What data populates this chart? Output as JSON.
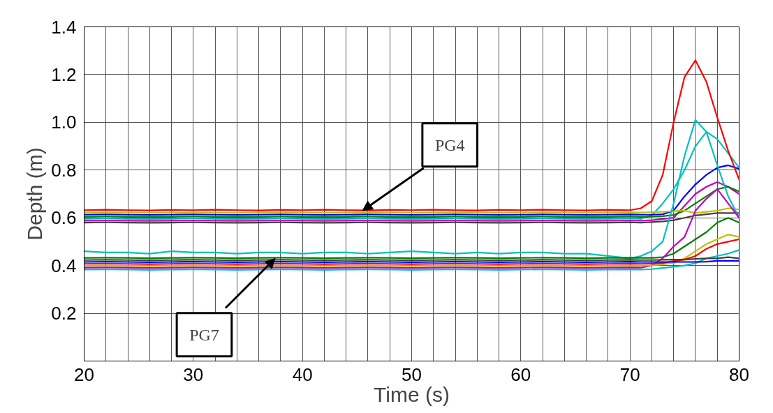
{
  "chart_data": {
    "type": "line",
    "xlabel": "Time (s)",
    "ylabel": "Depth (m)",
    "x": [
      20,
      22,
      24,
      26,
      28,
      30,
      32,
      34,
      36,
      38,
      40,
      42,
      44,
      46,
      48,
      50,
      52,
      54,
      56,
      58,
      60,
      62,
      64,
      66,
      68,
      70,
      71,
      72,
      73,
      74,
      75,
      76,
      77,
      78,
      79,
      80
    ],
    "xlim": [
      20,
      80
    ],
    "ylim": [
      0,
      1.4
    ],
    "xticks": [
      20,
      {
        "value": 22,
        "label": null
      },
      {
        "value": 24,
        "label": null
      },
      {
        "value": 26,
        "label": null
      },
      {
        "value": 28,
        "label": null
      },
      30,
      {
        "value": 32,
        "label": null
      },
      {
        "value": 34,
        "label": null
      },
      {
        "value": 36,
        "label": null
      },
      {
        "value": 38,
        "label": null
      },
      40,
      {
        "value": 42,
        "label": null
      },
      {
        "value": 44,
        "label": null
      },
      {
        "value": 46,
        "label": null
      },
      {
        "value": 48,
        "label": null
      },
      50,
      {
        "value": 52,
        "label": null
      },
      {
        "value": 54,
        "label": null
      },
      {
        "value": 56,
        "label": null
      },
      {
        "value": 58,
        "label": null
      },
      60,
      {
        "value": 62,
        "label": null
      },
      {
        "value": 64,
        "label": null
      },
      {
        "value": 66,
        "label": null
      },
      {
        "value": 68,
        "label": null
      },
      70,
      {
        "value": 72,
        "label": null
      },
      {
        "value": 74,
        "label": null
      },
      {
        "value": 76,
        "label": null
      },
      {
        "value": 78,
        "label": null
      },
      80
    ],
    "yticks": [
      0.2,
      0.4,
      0.6,
      0.8,
      {
        "value": 1.0,
        "label": "1.0"
      },
      1.2,
      1.4
    ],
    "grid": true,
    "marker": "none",
    "line_style": "solid",
    "annotations": [
      {
        "text": "PG4",
        "x": 45.5,
        "y": 0.63
      },
      {
        "text": "PG7",
        "x": 37.5,
        "y": 0.43
      }
    ],
    "series": [
      {
        "color": "#00c0c0",
        "values": [
          0.596,
          0.597,
          0.596,
          0.595,
          0.596,
          0.597,
          0.596,
          0.595,
          0.596,
          0.597,
          0.596,
          0.595,
          0.596,
          0.597,
          0.596,
          0.595,
          0.596,
          0.597,
          0.596,
          0.595,
          0.596,
          0.597,
          0.596,
          0.595,
          0.596,
          0.597,
          0.596,
          0.61,
          0.66,
          0.72,
          0.8,
          0.9,
          0.96,
          0.93,
          0.87,
          0.81
        ]
      },
      {
        "color": "#0000ff",
        "values": [
          0.613,
          0.614,
          0.613,
          0.612,
          0.613,
          0.614,
          0.613,
          0.612,
          0.613,
          0.614,
          0.613,
          0.612,
          0.613,
          0.614,
          0.613,
          0.612,
          0.613,
          0.614,
          0.613,
          0.612,
          0.613,
          0.614,
          0.613,
          0.612,
          0.613,
          0.614,
          0.613,
          0.613,
          0.615,
          0.63,
          0.69,
          0.74,
          0.78,
          0.81,
          0.82,
          0.805
        ]
      },
      {
        "color": "#c000c0",
        "values": [
          0.588,
          0.589,
          0.588,
          0.587,
          0.588,
          0.589,
          0.588,
          0.587,
          0.588,
          0.589,
          0.588,
          0.587,
          0.588,
          0.589,
          0.588,
          0.587,
          0.588,
          0.589,
          0.588,
          0.587,
          0.588,
          0.589,
          0.588,
          0.587,
          0.588,
          0.589,
          0.588,
          0.59,
          0.595,
          0.6,
          0.65,
          0.7,
          0.73,
          0.75,
          0.73,
          0.7
        ]
      },
      {
        "color": "#008000",
        "values": [
          0.604,
          0.605,
          0.604,
          0.603,
          0.604,
          0.605,
          0.604,
          0.603,
          0.604,
          0.605,
          0.604,
          0.603,
          0.604,
          0.605,
          0.604,
          0.603,
          0.604,
          0.605,
          0.604,
          0.603,
          0.604,
          0.605,
          0.604,
          0.603,
          0.604,
          0.605,
          0.604,
          0.605,
          0.607,
          0.612,
          0.63,
          0.66,
          0.69,
          0.72,
          0.73,
          0.71
        ]
      },
      {
        "color": "#c0c000",
        "values": [
          0.622,
          0.623,
          0.622,
          0.621,
          0.622,
          0.623,
          0.622,
          0.621,
          0.622,
          0.623,
          0.622,
          0.621,
          0.622,
          0.623,
          0.622,
          0.621,
          0.622,
          0.623,
          0.622,
          0.621,
          0.622,
          0.623,
          0.622,
          0.621,
          0.622,
          0.623,
          0.622,
          0.624,
          0.625,
          0.628,
          0.63,
          0.62,
          0.625,
          0.63,
          0.64,
          0.635
        ]
      },
      {
        "color": "#404040",
        "values": [
          0.58,
          0.581,
          0.58,
          0.579,
          0.58,
          0.581,
          0.58,
          0.579,
          0.58,
          0.581,
          0.58,
          0.579,
          0.58,
          0.581,
          0.58,
          0.579,
          0.58,
          0.581,
          0.58,
          0.579,
          0.58,
          0.581,
          0.58,
          0.579,
          0.58,
          0.581,
          0.58,
          0.582,
          0.585,
          0.59,
          0.6,
          0.61,
          0.615,
          0.62,
          0.62,
          0.62
        ]
      },
      {
        "color": "#ff0000",
        "values": [
          0.632,
          0.634,
          0.632,
          0.631,
          0.633,
          0.632,
          0.634,
          0.632,
          0.631,
          0.633,
          0.632,
          0.634,
          0.632,
          0.631,
          0.633,
          0.632,
          0.634,
          0.632,
          0.631,
          0.633,
          0.632,
          0.634,
          0.632,
          0.631,
          0.633,
          0.632,
          0.64,
          0.67,
          0.78,
          1.0,
          1.19,
          1.26,
          1.17,
          1.02,
          0.88,
          0.76
        ]
      },
      {
        "color": "#00c0c0",
        "values": [
          0.46,
          0.455,
          0.455,
          0.45,
          0.46,
          0.455,
          0.455,
          0.45,
          0.455,
          0.455,
          0.45,
          0.455,
          0.455,
          0.45,
          0.455,
          0.46,
          0.455,
          0.45,
          0.455,
          0.45,
          0.455,
          0.455,
          0.45,
          0.45,
          0.44,
          0.43,
          0.44,
          0.46,
          0.5,
          0.66,
          0.86,
          1.01,
          0.96,
          0.82,
          0.69,
          0.6
        ]
      },
      {
        "color": "#008000",
        "values": [
          0.432,
          0.433,
          0.432,
          0.431,
          0.432,
          0.433,
          0.432,
          0.431,
          0.432,
          0.433,
          0.432,
          0.431,
          0.432,
          0.433,
          0.432,
          0.431,
          0.432,
          0.433,
          0.432,
          0.431,
          0.432,
          0.433,
          0.432,
          0.431,
          0.432,
          0.433,
          0.432,
          0.432,
          0.435,
          0.45,
          0.48,
          0.51,
          0.54,
          0.58,
          0.6,
          0.58
        ]
      },
      {
        "color": "#c000c0",
        "values": [
          0.391,
          0.392,
          0.391,
          0.39,
          0.391,
          0.392,
          0.391,
          0.39,
          0.391,
          0.392,
          0.391,
          0.39,
          0.391,
          0.392,
          0.391,
          0.39,
          0.391,
          0.392,
          0.391,
          0.39,
          0.391,
          0.392,
          0.391,
          0.39,
          0.391,
          0.392,
          0.391,
          0.4,
          0.43,
          0.48,
          0.52,
          0.63,
          0.68,
          0.72,
          0.66,
          0.6
        ]
      },
      {
        "color": "#c0c000",
        "values": [
          0.399,
          0.4,
          0.399,
          0.398,
          0.399,
          0.4,
          0.399,
          0.398,
          0.399,
          0.4,
          0.399,
          0.398,
          0.399,
          0.4,
          0.399,
          0.398,
          0.399,
          0.4,
          0.399,
          0.398,
          0.399,
          0.4,
          0.399,
          0.398,
          0.399,
          0.4,
          0.399,
          0.4,
          0.405,
          0.41,
          0.43,
          0.46,
          0.49,
          0.51,
          0.53,
          0.52
        ]
      },
      {
        "color": "#ff0000",
        "values": [
          0.407,
          0.408,
          0.407,
          0.406,
          0.407,
          0.408,
          0.407,
          0.406,
          0.407,
          0.408,
          0.407,
          0.406,
          0.407,
          0.408,
          0.407,
          0.406,
          0.407,
          0.408,
          0.407,
          0.406,
          0.407,
          0.408,
          0.407,
          0.406,
          0.407,
          0.408,
          0.407,
          0.408,
          0.41,
          0.419,
          0.425,
          0.44,
          0.47,
          0.49,
          0.5,
          0.51
        ]
      },
      {
        "color": "#00c0c0",
        "values": [
          0.383,
          0.384,
          0.383,
          0.382,
          0.383,
          0.384,
          0.383,
          0.382,
          0.383,
          0.384,
          0.383,
          0.382,
          0.383,
          0.384,
          0.383,
          0.382,
          0.383,
          0.384,
          0.383,
          0.382,
          0.383,
          0.384,
          0.383,
          0.382,
          0.383,
          0.384,
          0.383,
          0.385,
          0.39,
          0.395,
          0.4,
          0.41,
          0.43,
          0.44,
          0.45,
          0.465
        ]
      },
      {
        "color": "#404040",
        "values": [
          0.423,
          0.424,
          0.423,
          0.422,
          0.423,
          0.424,
          0.423,
          0.422,
          0.423,
          0.424,
          0.423,
          0.422,
          0.423,
          0.424,
          0.423,
          0.422,
          0.423,
          0.424,
          0.423,
          0.422,
          0.423,
          0.424,
          0.423,
          0.422,
          0.423,
          0.424,
          0.423,
          0.423,
          0.424,
          0.425,
          0.425,
          0.428,
          0.43,
          0.43,
          0.435,
          0.43
        ]
      },
      {
        "color": "#0000ff",
        "values": [
          0.415,
          0.416,
          0.415,
          0.414,
          0.415,
          0.416,
          0.415,
          0.414,
          0.415,
          0.416,
          0.415,
          0.414,
          0.415,
          0.416,
          0.415,
          0.414,
          0.415,
          0.416,
          0.415,
          0.414,
          0.415,
          0.416,
          0.415,
          0.414,
          0.415,
          0.416,
          0.415,
          0.415,
          0.415,
          0.415,
          0.415,
          0.415,
          0.416,
          0.42,
          0.42,
          0.42
        ]
      }
    ]
  }
}
